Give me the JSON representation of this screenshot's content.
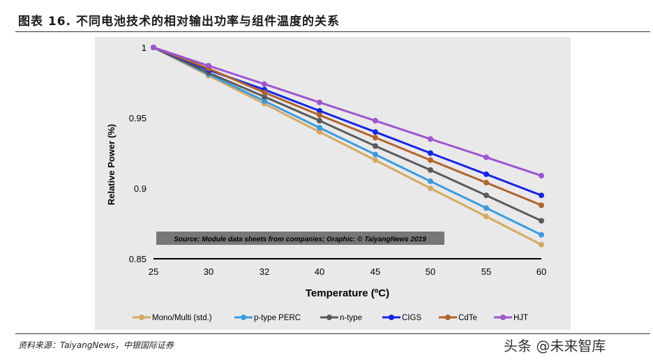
{
  "page": {
    "title": "图表 16. 不同电池技术的相对输出功率与组件温度的关系",
    "source": "资料来源：TaiyangNews，中银国际证券",
    "watermark": "头条 @未来智库"
  },
  "colors": {
    "panel_bg": "#e9e9e9",
    "source_box_bg": "#777777",
    "Mono/Multi (std.)": "#d4a962",
    "p-type PERC": "#3a9be0",
    "n-type": "#5a5a5a",
    "CIGS": "#1525e6",
    "CdTe": "#b0642c",
    "HJT": "#9d55d0"
  },
  "chart_data": {
    "type": "line",
    "title": "",
    "xlabel": "Temperature (ºC)",
    "ylabel": "Relative Power (%)",
    "categories": [
      "25",
      "30",
      "32",
      "40",
      "45",
      "50",
      "55",
      "60"
    ],
    "ylim": [
      0.85,
      1
    ],
    "yticks": [
      "0.85",
      "0.9",
      "0.95",
      "1"
    ],
    "ytick_values": [
      0.85,
      0.9,
      0.95,
      1
    ],
    "annotation": "Source: Module data sheets from companies; Graphic: © TaiyangNews 2019",
    "legend_position": "bottom",
    "series": [
      {
        "name": "Mono/Multi (std.)",
        "values": [
          1,
          0.98,
          0.96,
          0.94,
          0.92,
          0.9,
          0.88,
          0.86
        ]
      },
      {
        "name": "p-type PERC",
        "values": [
          1,
          0.981,
          0.962,
          0.943,
          0.924,
          0.905,
          0.886,
          0.867
        ]
      },
      {
        "name": "n-type",
        "values": [
          1,
          0.982,
          0.965,
          0.948,
          0.93,
          0.913,
          0.895,
          0.877
        ]
      },
      {
        "name": "CIGS",
        "values": [
          1,
          0.984,
          0.97,
          0.955,
          0.94,
          0.925,
          0.91,
          0.895
        ]
      },
      {
        "name": "CdTe",
        "values": [
          1,
          0.985,
          0.968,
          0.952,
          0.936,
          0.92,
          0.904,
          0.888
        ]
      },
      {
        "name": "HJT",
        "values": [
          1,
          0.987,
          0.974,
          0.961,
          0.948,
          0.935,
          0.922,
          0.909
        ]
      }
    ]
  }
}
